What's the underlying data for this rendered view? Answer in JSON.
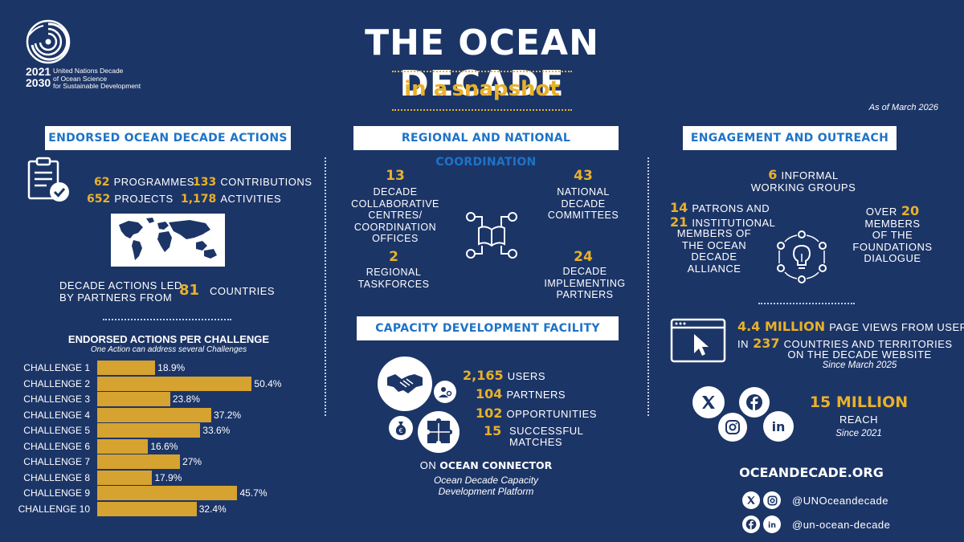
{
  "header": {
    "logo_years_start": "2021",
    "logo_years_end": "2030",
    "logo_text_1": "United Nations Decade",
    "logo_text_2": "of Ocean Science",
    "logo_text_3": "for Sustainable Development",
    "title": "THE OCEAN DECADE",
    "subtitle_a": "in a",
    "subtitle_b": "snapshot",
    "as_of": "As of March 2026"
  },
  "endorsed": {
    "heading": "ENDORSED OCEAN DECADE ACTIONS",
    "programmes_num": "62",
    "programmes_label": "PROGRAMMES",
    "contributions_num": "133",
    "contributions_label": "CONTRIBUTIONS",
    "projects_num": "652",
    "projects_label": "PROJECTS",
    "activities_num": "1,178",
    "activities_label": "ACTIVITIES",
    "countries_label_1": "DECADE ACTIONS LED",
    "countries_label_2": "BY PARTNERS FROM",
    "countries_num": "81",
    "countries_label_3": "COUNTRIES"
  },
  "chart_data": {
    "type": "bar",
    "title": "ENDORSED ACTIONS PER CHALLENGE",
    "subtitle": "One Action can address several Challenges",
    "categories": [
      "CHALLENGE 1",
      "CHALLENGE 2",
      "CHALLENGE 3",
      "CHALLENGE 4",
      "CHALLENGE 5",
      "CHALLENGE 6",
      "CHALLENGE 7",
      "CHALLENGE 8",
      "CHALLENGE 9",
      "CHALLENGE 10"
    ],
    "values": [
      18.9,
      50.4,
      23.8,
      37.2,
      33.6,
      16.6,
      27,
      17.9,
      45.7,
      32.4
    ],
    "value_labels": [
      "18.9%",
      "50.4%",
      "23.8%",
      "37.2%",
      "33.6%",
      "16.6%",
      "27%",
      "17.9%",
      "45.7%",
      "32.4%"
    ],
    "orientation": "horizontal",
    "xlim": [
      0,
      55
    ],
    "bar_color": "#d6a230"
  },
  "regional": {
    "heading": "REGIONAL AND NATIONAL COORDINATION",
    "dcc_num": "13",
    "dcc_label_1": "DECADE",
    "dcc_label_2": "COLLABORATIVE",
    "dcc_label_3": "CENTRES/",
    "dcc_label_4": "COORDINATION",
    "dcc_label_5": "OFFICES",
    "ndc_num": "43",
    "ndc_label_1": "NATIONAL",
    "ndc_label_2": "DECADE",
    "ndc_label_3": "COMMITTEES",
    "rt_num": "2",
    "rt_label_1": "REGIONAL",
    "rt_label_2": "TASKFORCES",
    "dip_num": "24",
    "dip_label_1": "DECADE",
    "dip_label_2": "IMPLEMENTING",
    "dip_label_3": "PARTNERS"
  },
  "capacity": {
    "heading": "CAPACITY DEVELOPMENT FACILITY",
    "users_num": "2,165",
    "users_label": "USERS",
    "partners_num": "104",
    "partners_label": "PARTNERS",
    "opps_num": "102",
    "opps_label": "OPPORTUNITIES",
    "matches_num": "15",
    "matches_label_1": "SUCCESSFUL",
    "matches_label_2": "MATCHES",
    "on_label": "ON",
    "connector": "OCEAN CONNECTOR",
    "platform_1": "Ocean Decade Capacity",
    "platform_2": "Development Platform"
  },
  "engagement": {
    "heading": "ENGAGEMENT AND OUTREACH",
    "iwg_num": "6",
    "iwg_label_1": "INFORMAL",
    "iwg_label_2": "WORKING GROUPS",
    "patrons_num": "14",
    "patrons_label": "PATRONS AND",
    "inst_num": "21",
    "inst_label_1": "INSTITUTIONAL",
    "inst_label_2": "MEMBERS OF",
    "inst_label_3": "THE OCEAN",
    "inst_label_4": "DECADE",
    "inst_label_5": "ALLIANCE",
    "over_label": "OVER",
    "found_num": "20",
    "found_label_1": "MEMBERS",
    "found_label_2": "OF THE",
    "found_label_3": "FOUNDATIONS",
    "found_label_4": "DIALOGUE",
    "views_num": "4.4 MILLION",
    "views_label": "PAGE VIEWS FROM USERS",
    "in_label": "IN",
    "countries_num": "237",
    "countries_label_1": "COUNTRIES AND TERRITORIES",
    "countries_label_2": "ON THE DECADE WEBSITE",
    "since_2025": "Since March 2025",
    "reach_num": "15 MILLION",
    "reach_label": "REACH",
    "since_2021": "Since 2021",
    "website": "OCEANDECADE.ORG",
    "handle_1": "@UNOceandecade",
    "handle_2": "@un-ocean-decade"
  },
  "colors": {
    "background": "#1c3567",
    "accent_gold": "#e8b12b",
    "heading_blue": "#1e73c7",
    "bar": "#d6a230"
  }
}
